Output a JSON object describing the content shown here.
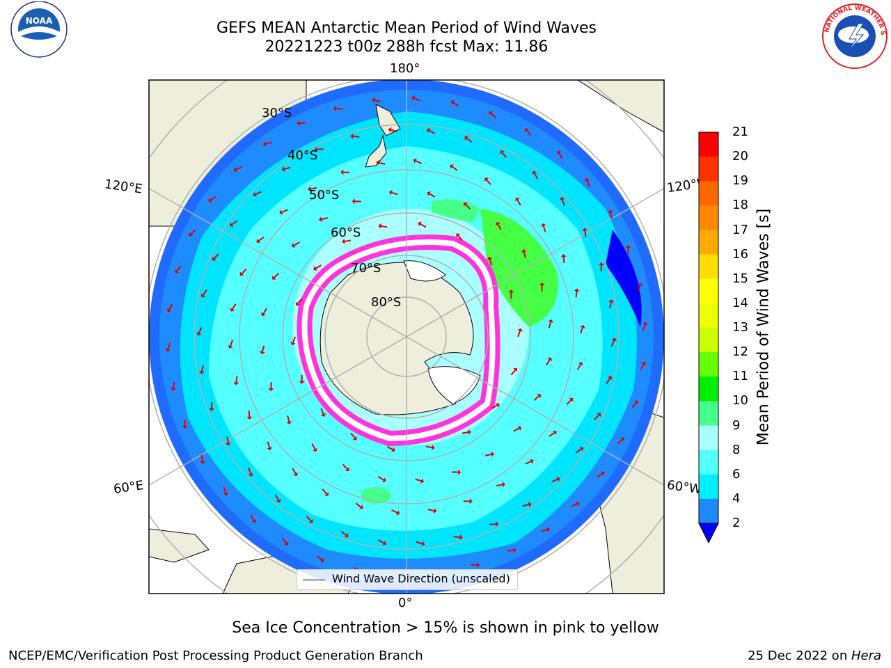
{
  "title": {
    "line1": "GEFS MEAN Antarctic Mean Period of Wind Waves",
    "line2": "20221223 t00z 288h fcst   Max: 11.86"
  },
  "logos": {
    "noaa": {
      "text": "NOAA"
    },
    "nws": {
      "text": "NATIONAL WEATHER SERVICE"
    }
  },
  "map": {
    "projection": "south-polar-stereographic",
    "longitude_labels": {
      "top": "180°",
      "bottom": "0°",
      "upper_left": "120°E",
      "upper_right": "120°W",
      "lower_left": "60°E",
      "lower_right": "60°W"
    },
    "latitude_labels": [
      "30°S",
      "40°S",
      "50°S",
      "60°S",
      "70°S",
      "80°S"
    ],
    "colors": {
      "land": "#eeeedd",
      "ocean_low": "#1f6bff",
      "ocean_mid": "#00e5ff",
      "ocean_high": "#44ff44",
      "sea_ice": "#ff33dd",
      "arrows": "#e00000"
    }
  },
  "legend": {
    "label": "Wind Wave Direction (unscaled)"
  },
  "colorbar": {
    "title": "Mean Period of Wind Waves [s]",
    "ticks": [
      "21",
      "20",
      "19",
      "18",
      "17",
      "16",
      "15",
      "14",
      "13",
      "12",
      "11",
      "10",
      "9",
      "8",
      "6",
      "4",
      "2"
    ],
    "colors": [
      "#ff0000",
      "#ff3300",
      "#ff6600",
      "#ff8800",
      "#ffaa00",
      "#ffdd00",
      "#ffff00",
      "#eeff00",
      "#ccff00",
      "#66ff00",
      "#00ee00",
      "#44ff88",
      "#aaffff",
      "#55ffff",
      "#00f0ff",
      "#1e88ff"
    ],
    "extend_color": "#0000ff"
  },
  "caption": "Sea Ice Concentration > 15% is shown in pink to yellow",
  "footer": {
    "left": "NCEP/EMC/Verification Post Processing Product Generation Branch",
    "date": "25 Dec 2022 on ",
    "machine": "Hera"
  }
}
